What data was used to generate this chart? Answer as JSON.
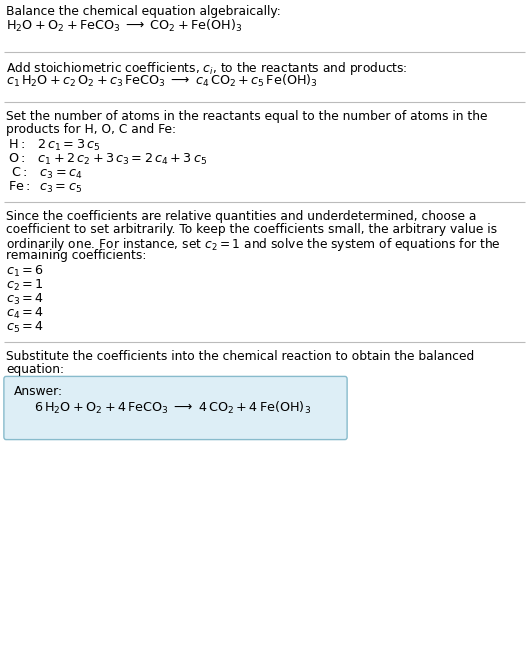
{
  "title": "Balance the chemical equation algebraically:",
  "equation1": "$\\mathrm{H_2O + O_2 + FeCO_3 \\;\\longrightarrow\\; CO_2 + Fe(OH)_3}$",
  "section2_title": "Add stoichiometric coefficients, $c_i$, to the reactants and products:",
  "equation2": "$c_1\\,\\mathrm{H_2O} + c_2\\,\\mathrm{O_2} + c_3\\,\\mathrm{FeCO_3} \\;\\longrightarrow\\; c_4\\,\\mathrm{CO_2} + c_5\\,\\mathrm{Fe(OH)_3}$",
  "section3_line1": "Set the number of atoms in the reactants equal to the number of atoms in the",
  "section3_line2": "products for H, O, C and Fe:",
  "eq3_H": "$\\mathrm{H:}\\;\\;\\; 2\\,c_1 = 3\\,c_5$",
  "eq3_O": "$\\mathrm{O:}\\;\\;\\; c_1 + 2\\,c_2 + 3\\,c_3 = 2\\,c_4 + 3\\,c_5$",
  "eq3_C": "$\\;\\mathrm{C:}\\;\\;\\; c_3 = c_4$",
  "eq3_Fe": "$\\mathrm{Fe:}\\;\\; c_3 = c_5$",
  "section4_line1": "Since the coefficients are relative quantities and underdetermined, choose a",
  "section4_line2": "coefficient to set arbitrarily. To keep the coefficients small, the arbitrary value is",
  "section4_line3": "ordinarily one. For instance, set $c_2 = 1$ and solve the system of equations for the",
  "section4_line4": "remaining coefficients:",
  "coeff1": "$c_1 = 6$",
  "coeff2": "$c_2 = 1$",
  "coeff3": "$c_3 = 4$",
  "coeff4": "$c_4 = 4$",
  "coeff5": "$c_5 = 4$",
  "section5_line1": "Substitute the coefficients into the chemical reaction to obtain the balanced",
  "section5_line2": "equation:",
  "answer_label": "Answer:",
  "answer_equation": "$6\\,\\mathrm{H_2O + O_2 + 4\\,FeCO_3 \\;\\longrightarrow\\; 4\\,CO_2 + 4\\,Fe(OH)_3}$",
  "bg_color": "#ffffff",
  "text_color": "#000000",
  "answer_box_facecolor": "#ddeef6",
  "answer_box_edgecolor": "#88bbcc",
  "sep_color": "#bbbbbb"
}
